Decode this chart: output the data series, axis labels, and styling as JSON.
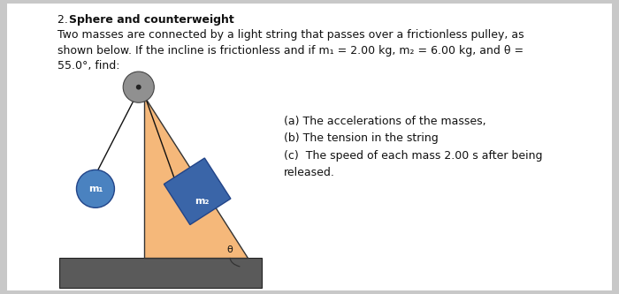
{
  "bg_color": "#ffffff",
  "outer_bg": "#c8c8c8",
  "triangle_color": "#f5b87a",
  "base_color": "#5a5a5a",
  "pulley_color": "#909090",
  "pulley_inner_color": "#222222",
  "m1_circle_color": "#4a82c0",
  "m2_block_color": "#3a65a8",
  "string_color": "#111111",
  "text_color": "#111111",
  "title_number": "2. ",
  "title_bold": "Sphere and counterweight",
  "line1": "Two masses are connected by a light string that passes over a frictionless pulley, as",
  "line2": "shown below. If the incline is frictionless and if m₁ = 2.00 kg, m₂ = 6.00 kg, and θ =",
  "line3": "55.0°, find:",
  "qa": "(a) The accelerations of the masses,",
  "qb": "(b) The tension in the string",
  "qc1": "(c)  The speed of each mass 2.00 s after being",
  "qc2": "released."
}
